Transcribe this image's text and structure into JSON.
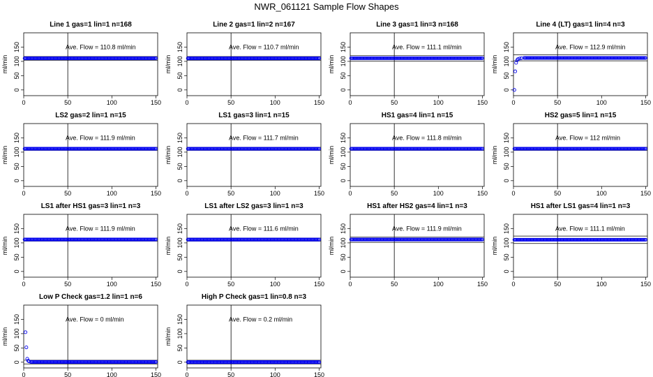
{
  "figure": {
    "title": "NWR_061121  Sample Flow Shapes"
  },
  "axes": {
    "xlim": [
      0,
      152
    ],
    "ylim": [
      -20,
      200
    ],
    "xticks": [
      0,
      50,
      100,
      150
    ],
    "yticks": [
      0,
      50,
      100,
      150
    ],
    "ylabel": "ml/min"
  },
  "chart_data": [
    {
      "type": "scatter",
      "title": "Line 1 gas=1 lin=1 n=168",
      "ylabel": "ml/min",
      "annotation": "Ave. Flow = 110.8  ml/min",
      "avg": 110.8,
      "vline_x": 50,
      "band": [
        104,
        117
      ],
      "points": {
        "x": [
          1,
          150
        ],
        "y": [
          110.8,
          110.8
        ],
        "style": "flat"
      }
    },
    {
      "type": "scatter",
      "title": "Line 2 gas=1 lin=2 n=167",
      "ylabel": "ml/min",
      "annotation": "Ave. Flow = 110.7  ml/min",
      "avg": 110.7,
      "vline_x": 50,
      "band": [
        104,
        117
      ],
      "points": {
        "x": [
          1,
          150
        ],
        "y": [
          110.7,
          110.7
        ],
        "style": "flat"
      }
    },
    {
      "type": "scatter",
      "title": "Line 3 gas=1 lin=3 n=168",
      "ylabel": "ml/min",
      "annotation": "Ave. Flow = 111.1  ml/min",
      "avg": 111.1,
      "vline_x": 50,
      "band": [
        101,
        121
      ],
      "points": {
        "x": [
          1,
          150
        ],
        "y": [
          111.1,
          111.1
        ],
        "style": "flat"
      }
    },
    {
      "type": "scatter",
      "title": "Line 4 (LT) gas=1 lin=4 n=3",
      "ylabel": "ml/min",
      "annotation": "Ave. Flow = 112.9  ml/min",
      "avg": 112.9,
      "vline_x": 50,
      "band": [
        102,
        123
      ],
      "points": {
        "x": [
          1,
          2,
          3,
          4,
          5,
          7,
          9,
          12
        ],
        "y": [
          0,
          65,
          95,
          104,
          108,
          110,
          111,
          112
        ],
        "style": "rise"
      }
    },
    {
      "type": "scatter",
      "title": "LS2 gas=2 lin=1 n=15",
      "ylabel": "ml/min",
      "annotation": "Ave. Flow = 111.9  ml/min",
      "avg": 111.9,
      "vline_x": 50,
      "band": [
        106,
        117
      ],
      "points": {
        "x": [
          1,
          150
        ],
        "y": [
          111.9,
          111.9
        ],
        "style": "flat"
      }
    },
    {
      "type": "scatter",
      "title": "LS1 gas=3 lin=1 n=15",
      "ylabel": "ml/min",
      "annotation": "Ave. Flow = 111.7  ml/min",
      "avg": 111.7,
      "vline_x": 50,
      "band": [
        106,
        117
      ],
      "points": {
        "x": [
          1,
          150
        ],
        "y": [
          111.7,
          111.7
        ],
        "style": "flat"
      }
    },
    {
      "type": "scatter",
      "title": "HS1 gas=4 lin=1 n=15",
      "ylabel": "ml/min",
      "annotation": "Ave. Flow = 111.8  ml/min",
      "avg": 111.8,
      "vline_x": 50,
      "band": [
        106,
        117
      ],
      "points": {
        "x": [
          1,
          150
        ],
        "y": [
          111.8,
          111.8
        ],
        "style": "flat"
      }
    },
    {
      "type": "scatter",
      "title": "HS2 gas=5 lin=1 n=15",
      "ylabel": "ml/min",
      "annotation": "Ave. Flow = 112  ml/min",
      "avg": 112,
      "vline_x": 50,
      "band": [
        106,
        117
      ],
      "points": {
        "x": [
          1,
          150
        ],
        "y": [
          112,
          112
        ],
        "style": "flat"
      }
    },
    {
      "type": "scatter",
      "title": "LS1 after HS1 gas=3 lin=1 n=3",
      "ylabel": "ml/min",
      "annotation": "Ave. Flow = 111.9  ml/min",
      "avg": 111.9,
      "vline_x": 50,
      "band": [
        106,
        117
      ],
      "points": {
        "x": [
          1,
          150
        ],
        "y": [
          111.9,
          111.9
        ],
        "style": "flat"
      }
    },
    {
      "type": "scatter",
      "title": "LS1 after LS2 gas=3 lin=1 n=3",
      "ylabel": "ml/min",
      "annotation": "Ave. Flow = 111.6  ml/min",
      "avg": 111.6,
      "vline_x": 50,
      "band": [
        106,
        117
      ],
      "points": {
        "x": [
          1,
          150
        ],
        "y": [
          111.6,
          111.6
        ],
        "style": "flat"
      }
    },
    {
      "type": "scatter",
      "title": "HS1 after HS2 gas=4 lin=1 n=3",
      "ylabel": "ml/min",
      "annotation": "Ave. Flow = 111.9  ml/min",
      "avg": 111.9,
      "vline_x": 50,
      "band": [
        102,
        121
      ],
      "points": {
        "x": [
          1,
          150
        ],
        "y": [
          111.9,
          111.9
        ],
        "style": "flat"
      }
    },
    {
      "type": "scatter",
      "title": "HS1 after LS1 gas=4 lin=1 n=3",
      "ylabel": "ml/min",
      "annotation": "Ave. Flow = 111.1  ml/min",
      "avg": 111.1,
      "vline_x": 50,
      "band": [
        98,
        124
      ],
      "points": {
        "x": [
          1,
          150
        ],
        "y": [
          111.1,
          111.1
        ],
        "style": "flat"
      }
    },
    {
      "type": "scatter",
      "title": "Low P Check gas=1.2 lin=1 n=6",
      "ylabel": "ml/min",
      "annotation": "Ave. Flow = 0  ml/min",
      "avg": 0,
      "vline_x": 50,
      "band": [
        -6,
        7
      ],
      "points": {
        "x": [
          2,
          3,
          4,
          5,
          6,
          8
        ],
        "y": [
          105,
          52,
          12,
          5,
          3,
          1
        ],
        "style": "decay"
      }
    },
    {
      "type": "scatter",
      "title": "High P Check gas=1 lin=0.8 n=3",
      "ylabel": "ml/min",
      "annotation": "Ave. Flow = 0.2  ml/min",
      "avg": 0.2,
      "vline_x": 50,
      "band": [
        -6,
        7
      ],
      "points": {
        "x": [
          1,
          150
        ],
        "y": [
          0.2,
          0.2
        ],
        "style": "flat"
      }
    }
  ],
  "colors": {
    "points": "#0000ee",
    "lines": "#000000"
  }
}
